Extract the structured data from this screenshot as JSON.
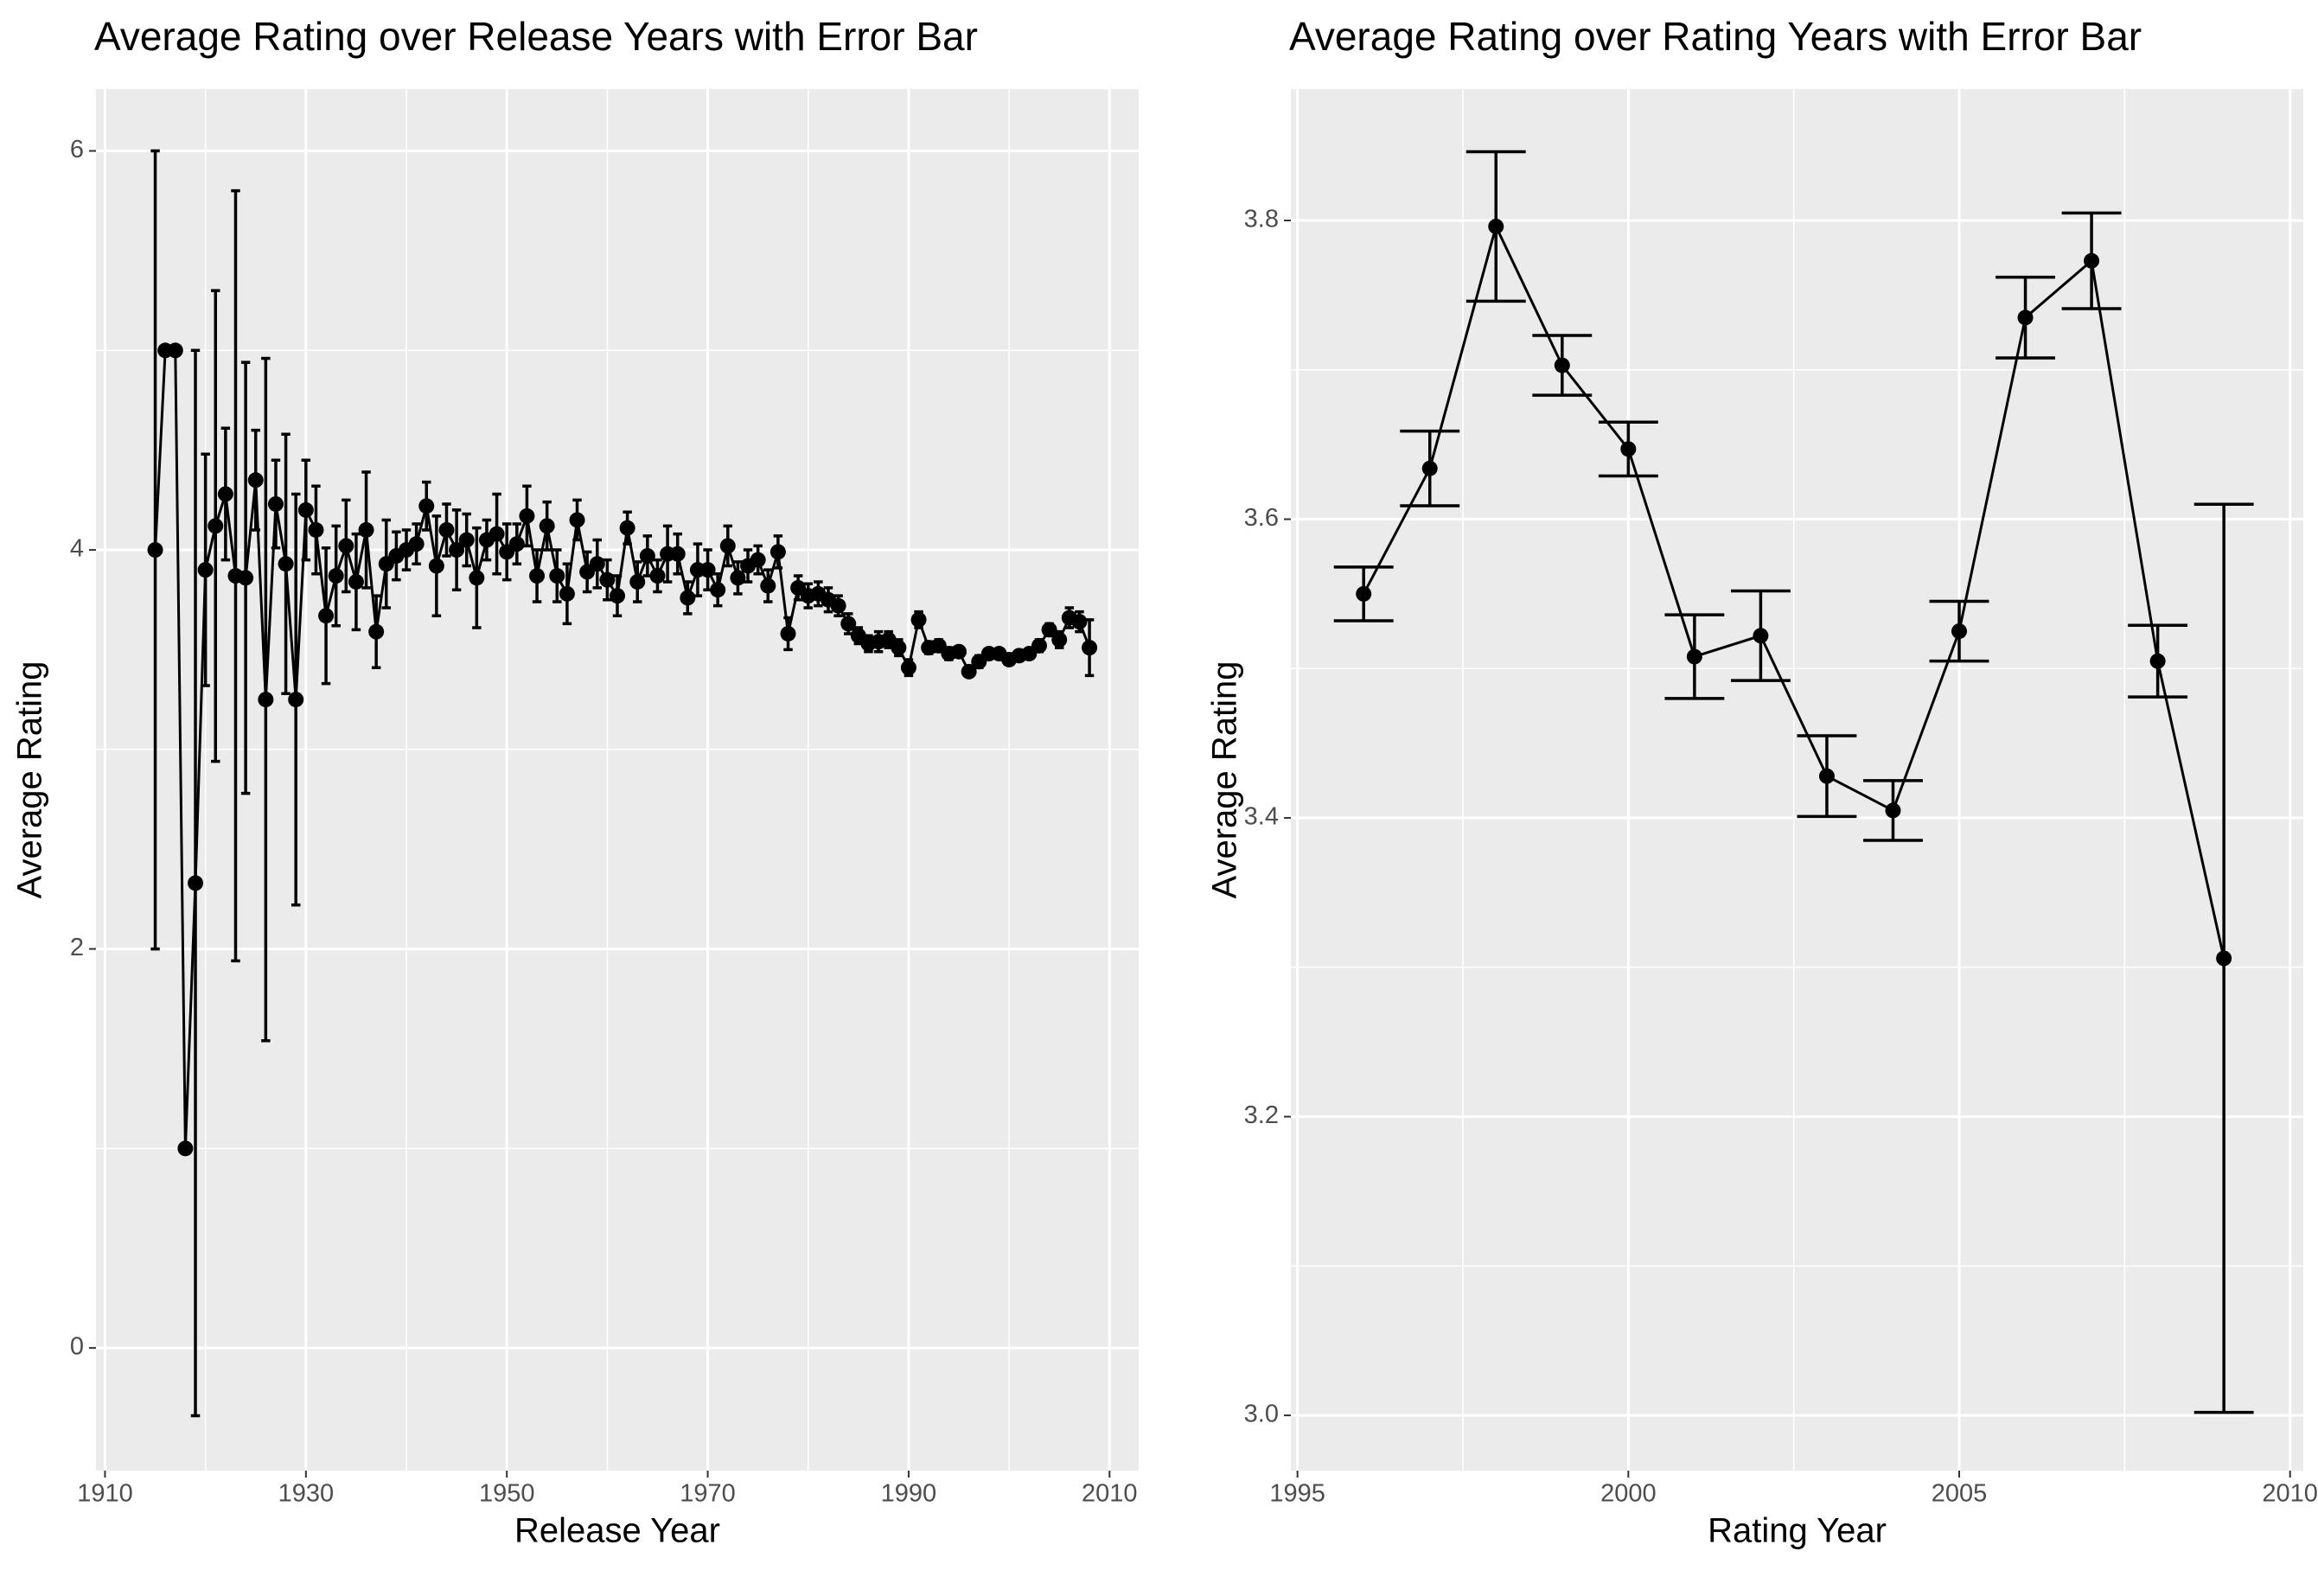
{
  "chart_data": [
    {
      "type": "line",
      "title": "Average Rating over Release Years with Error Bar",
      "x_label": "Release Year",
      "y_label": "Average Rating",
      "color": "#000000",
      "grid": true,
      "xlim": [
        1909.1,
        2012.9
      ],
      "ylim": [
        -0.615,
        6.31
      ],
      "xticks": [
        1910,
        1930,
        1950,
        1970,
        1990,
        2010
      ],
      "yticks": [
        0,
        2,
        4,
        6
      ],
      "x": [
        1915,
        1916,
        1917,
        1918,
        1919,
        1920,
        1921,
        1922,
        1923,
        1924,
        1925,
        1926,
        1927,
        1928,
        1929,
        1930,
        1931,
        1932,
        1933,
        1934,
        1935,
        1936,
        1937,
        1938,
        1939,
        1940,
        1941,
        1942,
        1943,
        1944,
        1945,
        1946,
        1947,
        1948,
        1949,
        1950,
        1951,
        1952,
        1953,
        1954,
        1955,
        1956,
        1957,
        1958,
        1959,
        1960,
        1961,
        1962,
        1963,
        1964,
        1965,
        1966,
        1967,
        1968,
        1969,
        1970,
        1971,
        1972,
        1973,
        1974,
        1975,
        1976,
        1977,
        1978,
        1979,
        1980,
        1981,
        1982,
        1983,
        1984,
        1985,
        1986,
        1987,
        1988,
        1989,
        1990,
        1991,
        1992,
        1993,
        1994,
        1995,
        1996,
        1997,
        1998,
        1999,
        2000,
        2001,
        2002,
        2003,
        2004,
        2005,
        2006,
        2007,
        2008
      ],
      "values": [
        4.0,
        5.0,
        5.0,
        1.0,
        2.33,
        3.9,
        4.12,
        4.28,
        3.87,
        3.86,
        4.35,
        3.25,
        4.23,
        3.93,
        3.25,
        4.2,
        4.1,
        3.67,
        3.87,
        4.02,
        3.84,
        4.1,
        3.59,
        3.93,
        3.97,
        4.0,
        4.03,
        4.22,
        3.92,
        4.1,
        4.0,
        4.05,
        3.86,
        4.05,
        4.08,
        3.99,
        4.03,
        4.17,
        3.87,
        4.12,
        3.87,
        3.78,
        4.15,
        3.89,
        3.93,
        3.85,
        3.77,
        4.11,
        3.84,
        3.97,
        3.87,
        3.98,
        3.98,
        3.76,
        3.9,
        3.9,
        3.8,
        4.02,
        3.86,
        3.92,
        3.95,
        3.82,
        3.99,
        3.58,
        3.81,
        3.77,
        3.78,
        3.75,
        3.72,
        3.63,
        3.57,
        3.53,
        3.54,
        3.55,
        3.51,
        3.41,
        3.65,
        3.51,
        3.52,
        3.48,
        3.49,
        3.39,
        3.44,
        3.48,
        3.48,
        3.45,
        3.47,
        3.48,
        3.52,
        3.6,
        3.55,
        3.66,
        3.64,
        3.51
      ],
      "errors": [
        2.0,
        0,
        0,
        0,
        2.67,
        0.58,
        1.18,
        0.33,
        1.93,
        1.08,
        0.25,
        1.71,
        0.22,
        0.65,
        1.03,
        0.25,
        0.22,
        0.34,
        0.25,
        0.23,
        0.24,
        0.29,
        0.18,
        0.22,
        0.12,
        0.1,
        0.1,
        0.12,
        0.25,
        0.13,
        0.2,
        0.13,
        0.25,
        0.1,
        0.2,
        0.14,
        0.1,
        0.15,
        0.13,
        0.12,
        0.13,
        0.15,
        0.1,
        0.1,
        0.12,
        0.1,
        0.1,
        0.08,
        0.1,
        0.1,
        0.08,
        0.14,
        0.1,
        0.08,
        0.13,
        0.1,
        0.08,
        0.1,
        0.08,
        0.08,
        0.07,
        0.08,
        0.08,
        0.08,
        0.06,
        0.06,
        0.06,
        0.06,
        0.05,
        0.05,
        0.04,
        0.04,
        0.05,
        0.04,
        0.04,
        0.04,
        0.04,
        0.03,
        0.03,
        0.03,
        0.02,
        0.02,
        0.03,
        0.02,
        0.02,
        0.02,
        0.02,
        0.02,
        0.03,
        0.03,
        0.04,
        0.05,
        0.05,
        0.14
      ]
    },
    {
      "type": "line",
      "title": "Average Rating over Rating Years with Error Bar",
      "x_label": "Rating Year",
      "y_label": "Average Rating",
      "color": "#000000",
      "grid": true,
      "xlim": [
        1994.9,
        2010.2
      ],
      "ylim": [
        2.963,
        3.888
      ],
      "xticks": [
        1995,
        2000,
        2005,
        2010
      ],
      "yticks": [
        {
          "value": 3,
          "label": "3.0"
        },
        3.2,
        3.4,
        3.6,
        3.8
      ],
      "x": [
        1996,
        1997,
        1998,
        1999,
        2000,
        2001,
        2002,
        2003,
        2004,
        2005,
        2006,
        2007,
        2008,
        2009
      ],
      "values": [
        3.55,
        3.634,
        3.796,
        3.703,
        3.647,
        3.508,
        3.522,
        3.428,
        3.405,
        3.525,
        3.735,
        3.773,
        3.505,
        3.306
      ],
      "errors": [
        0.018,
        0.025,
        0.05,
        0.02,
        0.018,
        0.028,
        0.03,
        0.027,
        0.02,
        0.02,
        0.027,
        0.032,
        0.024,
        0.304
      ]
    }
  ]
}
